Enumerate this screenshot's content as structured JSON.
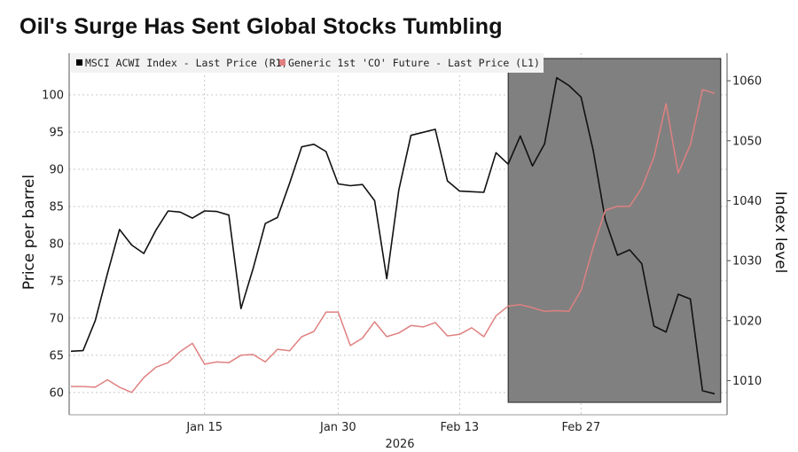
{
  "chart_data": {
    "type": "line",
    "title": "Oil's Surge Has Sent Global Stocks Tumbling",
    "xlabel": "2026",
    "ylabel_left": "Price per barrel",
    "ylabel_right": "Index level",
    "ylim_left": [
      57,
      105.6
    ],
    "ylim_right": [
      1004.3,
      1064.6
    ],
    "left_ticks": [
      100,
      95,
      90,
      85,
      80,
      75,
      70,
      65,
      60
    ],
    "right_ticks": [
      1060,
      1050,
      1040,
      1030,
      1020,
      1010
    ],
    "x_ticks": [
      {
        "label": "Jan 15",
        "index": 11
      },
      {
        "label": "Jan 30",
        "index": 22
      },
      {
        "label": "Feb 13",
        "index": 32
      },
      {
        "label": "Feb 27",
        "index": 42
      }
    ],
    "x_count": 54,
    "shaded_region": {
      "start_index": 36,
      "end_index": 53.5
    },
    "legend": [
      {
        "label": "MSCI ACWI Index - Last Price (R1)",
        "color": "#000000"
      },
      {
        "label": "Generic 1st 'CO' Future - Last Price (L1)",
        "color": "#e08080"
      }
    ],
    "series": [
      {
        "name": "MSCI ACWI Index - Last Price (R1)",
        "axis": "right",
        "color": "#111111",
        "values": [
          1014.9,
          1015.0,
          1020.0,
          1027.8,
          1035.2,
          1032.6,
          1031.2,
          1035.1,
          1038.3,
          1038.1,
          1037.1,
          1038.3,
          1038.2,
          1037.6,
          1022.0,
          1028.7,
          1036.2,
          1037.2,
          1042.9,
          1049.0,
          1049.4,
          1048.2,
          1042.8,
          1042.5,
          1042.7,
          1040.0,
          1027.0,
          1041.8,
          1050.9,
          1051.4,
          1051.9,
          1043.3,
          1041.6,
          1041.5,
          1041.4,
          1048.0,
          1046.1,
          1050.8,
          1045.8,
          1049.5,
          1060.5,
          1059.2,
          1057.3,
          1048.4,
          1036.8,
          1030.9,
          1031.8,
          1029.5,
          1019.1,
          1018.1,
          1024.4,
          1023.6,
          1008.3,
          1007.8
        ]
      },
      {
        "name": "Generic 1st 'CO' Future - Last Price (L1)",
        "axis": "left",
        "color": "#e08080",
        "values": [
          60.8,
          60.8,
          60.7,
          61.7,
          60.7,
          60.0,
          62.0,
          63.4,
          64.0,
          65.5,
          66.6,
          63.8,
          64.1,
          64.0,
          65.0,
          65.1,
          64.1,
          65.8,
          65.6,
          67.5,
          68.2,
          70.8,
          70.8,
          66.3,
          67.3,
          69.5,
          67.5,
          68.0,
          69.0,
          68.8,
          69.4,
          67.6,
          67.8,
          68.7,
          67.5,
          70.3,
          71.6,
          71.8,
          71.4,
          70.9,
          71.0,
          70.9,
          73.7,
          79.5,
          84.5,
          85.0,
          85.0,
          87.5,
          91.6,
          98.8,
          89.5,
          93.3,
          100.7,
          100.2
        ]
      }
    ]
  }
}
